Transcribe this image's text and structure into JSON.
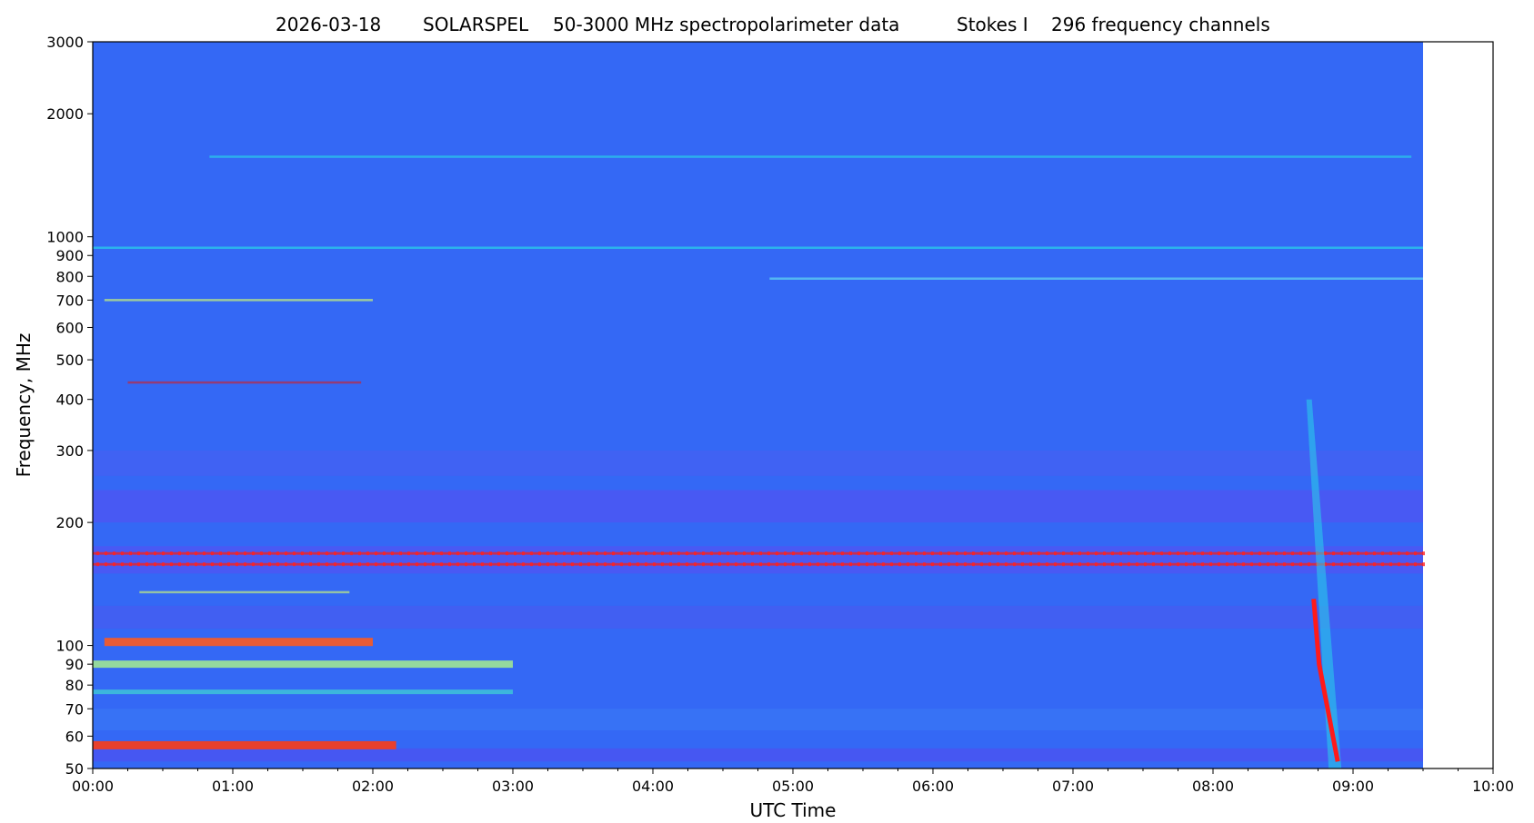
{
  "chart_data": {
    "type": "heatmap",
    "title_parts": [
      "2026-03-18",
      "SOLARSPEL",
      "50-3000 MHz spectropolarimeter data",
      "Stokes I",
      "296 frequency channels"
    ],
    "xlabel": "UTC Time",
    "ylabel": "Frequency, MHz",
    "x_scale": "time",
    "y_scale": "log",
    "xlim": [
      "00:00",
      "10:00"
    ],
    "ylim": [
      50,
      3000
    ],
    "data_time_range": [
      "00:00",
      "09:30"
    ],
    "x_ticks": [
      "00:00",
      "01:00",
      "02:00",
      "03:00",
      "04:00",
      "05:00",
      "06:00",
      "07:00",
      "08:00",
      "09:00",
      "10:00"
    ],
    "y_ticks": [
      50,
      60,
      70,
      80,
      90,
      100,
      200,
      300,
      400,
      500,
      600,
      700,
      800,
      900,
      1000,
      2000,
      3000
    ],
    "colormap": "jet",
    "background_color": "#3468f5",
    "bands": [
      {
        "freq": 1570,
        "color": "#29d2e8",
        "intensity": 0.55,
        "from": "00:50",
        "to": "09:25"
      },
      {
        "freq": 940,
        "color": "#29d2e8",
        "intensity": 0.6,
        "from": "00:00",
        "to": "09:30"
      },
      {
        "freq": 790,
        "color": "#66e0f0",
        "intensity": 0.5,
        "from": "04:50",
        "to": "09:30"
      },
      {
        "freq": 700,
        "color": "#c8f37a",
        "intensity": 0.6,
        "from": "00:05",
        "to": "02:00"
      },
      {
        "freq": 440,
        "color": "#d81b1b",
        "intensity": 0.4,
        "from": "00:15",
        "to": "01:55"
      },
      {
        "freq": 168,
        "color": "#ee2222",
        "intensity": 0.7,
        "from": "00:00",
        "to": "09:30"
      },
      {
        "freq": 158,
        "color": "#ee2222",
        "intensity": 0.7,
        "from": "00:00",
        "to": "09:30"
      },
      {
        "freq": 135,
        "color": "#c8f37a",
        "intensity": 0.5,
        "from": "00:20",
        "to": "01:50"
      },
      {
        "freq": 102,
        "color": "#ff5a1e",
        "intensity": 0.9,
        "from": "00:05",
        "to": "02:00"
      },
      {
        "freq": 90,
        "color": "#a8f08c",
        "intensity": 0.8,
        "from": "00:00",
        "to": "03:00"
      },
      {
        "freq": 77,
        "color": "#40e0d0",
        "intensity": 0.5,
        "from": "00:00",
        "to": "03:00"
      },
      {
        "freq": 57,
        "color": "#ff3c14",
        "intensity": 0.9,
        "from": "00:00",
        "to": "02:10"
      }
    ],
    "burst": {
      "time_start": "08:40",
      "time_end": "08:55",
      "freq_top": 400,
      "freq_bottom": 50,
      "color": "#ff1a1a"
    }
  }
}
